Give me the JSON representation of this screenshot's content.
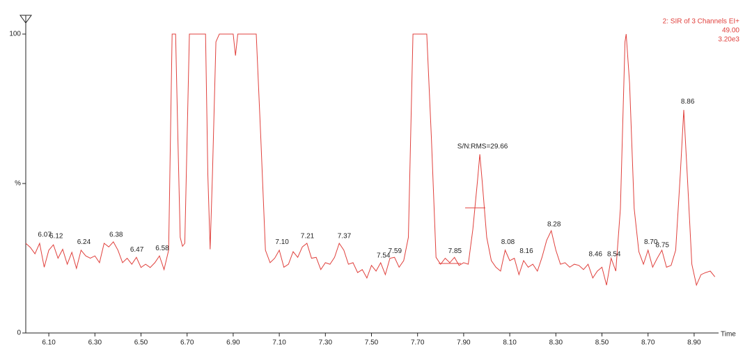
{
  "chart_data": {
    "type": "line",
    "header": [
      "2: SIR of 3 Channels EI+",
      "49.00",
      "3.20e3"
    ],
    "xlabel": "Time",
    "color": "#e0403c",
    "xlim": [
      6.0,
      9.0
    ],
    "ylim": [
      0,
      100
    ],
    "xticks": [
      {
        "value": 6.1,
        "label": "6.10"
      },
      {
        "value": 6.3,
        "label": "6.30"
      },
      {
        "value": 6.5,
        "label": "6.50"
      },
      {
        "value": 6.7,
        "label": "6.70"
      },
      {
        "value": 6.9,
        "label": "6.90"
      },
      {
        "value": 7.1,
        "label": "7.10"
      },
      {
        "value": 7.3,
        "label": "7.30"
      },
      {
        "value": 7.5,
        "label": "7.50"
      },
      {
        "value": 7.7,
        "label": "7.70"
      },
      {
        "value": 7.9,
        "label": "7.90"
      },
      {
        "value": 8.1,
        "label": "8.10"
      },
      {
        "value": 8.3,
        "label": "8.30"
      },
      {
        "value": 8.5,
        "label": "8.50"
      },
      {
        "value": 8.7,
        "label": "8.70"
      },
      {
        "value": 8.9,
        "label": "8.90"
      }
    ],
    "yticks": [
      0,
      {
        "value": 50,
        "label": "%"
      },
      100
    ],
    "x": [
      6.0,
      6.02,
      6.04,
      6.06,
      6.08,
      6.1,
      6.12,
      6.14,
      6.16,
      6.18,
      6.2,
      6.22,
      6.24,
      6.26,
      6.28,
      6.3,
      6.32,
      6.34,
      6.36,
      6.38,
      6.4,
      6.42,
      6.44,
      6.46,
      6.48,
      6.5,
      6.52,
      6.54,
      6.56,
      6.58,
      6.6,
      6.62,
      6.635,
      6.65,
      6.66,
      6.67,
      6.68,
      6.69,
      6.7,
      6.71,
      6.78,
      6.79,
      6.8,
      6.81,
      6.825,
      6.84,
      6.9,
      6.91,
      6.92,
      7.0,
      7.02,
      7.04,
      7.06,
      7.08,
      7.1,
      7.12,
      7.14,
      7.16,
      7.18,
      7.2,
      7.22,
      7.24,
      7.26,
      7.28,
      7.3,
      7.32,
      7.34,
      7.36,
      7.38,
      7.4,
      7.42,
      7.44,
      7.46,
      7.48,
      7.5,
      7.52,
      7.54,
      7.56,
      7.58,
      7.6,
      7.62,
      7.64,
      7.66,
      7.68,
      7.74,
      7.76,
      7.78,
      7.8,
      7.82,
      7.84,
      7.86,
      7.88,
      7.9,
      7.92,
      7.94,
      7.96,
      7.97,
      7.98,
      8.0,
      8.02,
      8.04,
      8.06,
      8.08,
      8.1,
      8.12,
      8.14,
      8.16,
      8.18,
      8.2,
      8.22,
      8.24,
      8.26,
      8.28,
      8.3,
      8.32,
      8.34,
      8.36,
      8.38,
      8.4,
      8.42,
      8.44,
      8.46,
      8.48,
      8.5,
      8.52,
      8.54,
      8.56,
      8.58,
      8.6,
      8.605,
      8.62,
      8.64,
      8.66,
      8.68,
      8.7,
      8.72,
      8.74,
      8.76,
      8.78,
      8.8,
      8.82,
      8.84,
      8.855,
      8.87,
      8.89,
      8.91,
      8.93,
      8.95,
      8.97,
      8.99
    ],
    "values": [
      30,
      28.6,
      26.5,
      30,
      22,
      27.7,
      29.5,
      25,
      28,
      23,
      27,
      21.6,
      27.7,
      25.8,
      25,
      25.8,
      23.5,
      30,
      28.8,
      30.5,
      27.7,
      23.5,
      25,
      23,
      25.3,
      21.9,
      23,
      21.9,
      23.5,
      25.8,
      21.2,
      27.7,
      100,
      100,
      65,
      32,
      29,
      30,
      65,
      100,
      100,
      53,
      28,
      53,
      97.4,
      100,
      100,
      92.8,
      100,
      100,
      65,
      27.7,
      23.5,
      25,
      27.7,
      22,
      23,
      27.2,
      25.3,
      28.8,
      30,
      25,
      25.3,
      21.2,
      23.5,
      23,
      25.3,
      30,
      27.7,
      23,
      23.5,
      20.2,
      21.2,
      18.4,
      22.6,
      20.7,
      23.5,
      19.5,
      25,
      25.3,
      22,
      24.2,
      32,
      100,
      100,
      65,
      25.3,
      23,
      25,
      23.5,
      25.3,
      22.6,
      23.5,
      23,
      34.7,
      51,
      59.8,
      51,
      32,
      24.2,
      22,
      20.7,
      27.7,
      24.2,
      25,
      19.5,
      24.2,
      22,
      23,
      20.7,
      25.3,
      31,
      34.2,
      27.7,
      23,
      23.5,
      22,
      23,
      22.6,
      21.2,
      23,
      18.4,
      20.7,
      22,
      16,
      25,
      20.7,
      41.6,
      97.4,
      100,
      83.5,
      41.6,
      27.2,
      23,
      27.7,
      22,
      25,
      27.7,
      22,
      22.6,
      27.7,
      53,
      74.6,
      53,
      23,
      16,
      19.5,
      20.2,
      20.7,
      18.8
    ],
    "annotations": [
      {
        "text": "6.07",
        "x": 6.07,
        "y": 30.5
      },
      {
        "text": "6.12",
        "x": 6.12,
        "y": 30
      },
      {
        "text": "6.24",
        "x": 6.24,
        "y": 28
      },
      {
        "text": "6.38",
        "x": 6.38,
        "y": 30.5
      },
      {
        "text": "6.47",
        "x": 6.47,
        "y": 25.5
      },
      {
        "text": "6.58",
        "x": 6.58,
        "y": 26
      },
      {
        "text": "7.10",
        "x": 7.1,
        "y": 28
      },
      {
        "text": "7.21",
        "x": 7.21,
        "y": 30
      },
      {
        "text": "7.37",
        "x": 7.37,
        "y": 30
      },
      {
        "text": "7.54",
        "x": 7.54,
        "y": 23.5
      },
      {
        "text": "7.59",
        "x": 7.59,
        "y": 25
      },
      {
        "text": "7.85",
        "x": 7.85,
        "y": 25
      },
      {
        "text": "S/N:RMS=29.66",
        "x": 7.97,
        "y": 60
      },
      {
        "text": "8.08",
        "x": 8.08,
        "y": 28
      },
      {
        "text": "8.16",
        "x": 8.16,
        "y": 25
      },
      {
        "text": "8.28",
        "x": 8.28,
        "y": 34
      },
      {
        "text": "8.46",
        "x": 8.46,
        "y": 24
      },
      {
        "text": "8.54",
        "x": 8.54,
        "y": 24
      },
      {
        "text": "8.70",
        "x": 8.7,
        "y": 28
      },
      {
        "text": "8.75",
        "x": 8.75,
        "y": 27
      },
      {
        "text": "8.86",
        "x": 8.86,
        "y": 75
      }
    ]
  }
}
